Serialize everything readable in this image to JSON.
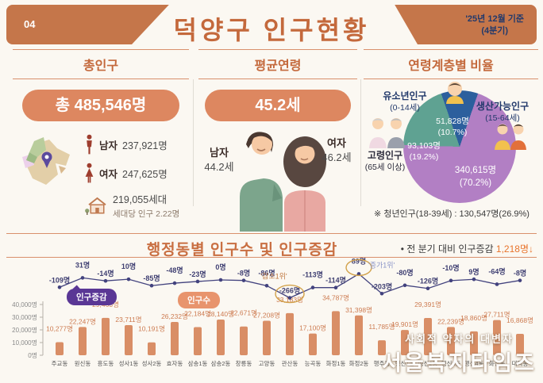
{
  "header": {
    "page_no": "04",
    "title": "덕양구 인구현황",
    "period_line1": "'25년 12월 기준",
    "period_line2": "(4분기)"
  },
  "total": {
    "title": "총인구",
    "total_pill": "총 485,546명",
    "male_label": "남자",
    "male_value": "237,921명",
    "female_label": "여자",
    "female_value": "247,625명",
    "household_value": "219,055세대",
    "household_note": "세대당 인구 2.22명"
  },
  "avg_age": {
    "title": "평균연령",
    "pill": "45.2세",
    "male_label": "남자",
    "male_value": "44.2세",
    "female_label": "여자",
    "female_value": "46.2세"
  },
  "age_ratio": {
    "title": "연령계층별 비율",
    "note": "※ 청년인구(18-39세) : 130,547명(26.9%)"
  },
  "district_chart": {
    "title": "행정동별 인구수 및 인구증감",
    "side_note_prefix": "• 전 분기 대비 인구증감 ",
    "side_note_value": "1,218명↓",
    "legend_change": "인구증감",
    "legend_pop": "인구수",
    "min_label": "'감소1위'",
    "max_label": "'증가1위'"
  },
  "watermark": {
    "line1": "사회적 약자의 대변자",
    "line2": "서울복지타임즈"
  },
  "colors": {
    "header_orange": "#c5764a",
    "title_orange": "#c4693c",
    "pill_salmon": "#dd8760",
    "badge_purple": "#5a3795",
    "badge_salmon": "#e8946d",
    "note_orange": "#e8742c",
    "navy_text": "#22396b"
  },
  "chart_data": [
    {
      "type": "pie",
      "title": "연령계층별 비율",
      "legend_position": "around",
      "slices": [
        {
          "name": "생산가능인구",
          "range": "(15-64세)",
          "value": 340615,
          "pct": 70.2,
          "value_display": "340,615명",
          "pct_display": "(70.2%)",
          "color": "#b27fc4"
        },
        {
          "name": "고령인구",
          "range": "(65세 이상)",
          "value": 93103,
          "pct": 19.2,
          "value_display": "93,103명",
          "pct_display": "(19.2%)",
          "color": "#5fa292"
        },
        {
          "name": "유소년인구",
          "range": "(0-14세)",
          "value": 51828,
          "pct": 10.7,
          "value_display": "51,828명",
          "pct_display": "(10.7%)",
          "color": "#2c5f9d"
        }
      ],
      "annotation": "※ 청년인구(18-39세) : 130,547명(26.9%)"
    },
    {
      "type": "bar",
      "title": "행정동별 인구수 및 인구증감",
      "categories": [
        "주교동",
        "원신동",
        "흥도동",
        "성사1동",
        "성사2동",
        "효자동",
        "삼송1동",
        "삼송2동",
        "창릉동",
        "고양동",
        "관산동",
        "능곡동",
        "화정1동",
        "화정2동",
        "행주동",
        "행신1동",
        "행신2동",
        "행신3동",
        "행신4동",
        "화전동",
        "대덕동"
      ],
      "series": [
        {
          "name": "인구수",
          "type": "bar",
          "color": "#d98e66",
          "values": [
            10277,
            22247,
            29463,
            23711,
            10191,
            26232,
            22184,
            28140,
            22671,
            27208,
            33183,
            17100,
            34787,
            31398,
            11785,
            19901,
            29391,
            22239,
            18860,
            27711,
            16868
          ]
        },
        {
          "name": "인구증감",
          "type": "line",
          "color": "#42427e",
          "values": [
            -109,
            31,
            -14,
            10,
            -85,
            -48,
            -23,
            0,
            -8,
            -86,
            -266,
            -113,
            -114,
            89,
            -203,
            -80,
            -126,
            -10,
            9,
            -64,
            -8
          ]
        }
      ],
      "ylim": [
        0,
        40000
      ],
      "yticks": [
        40000,
        30000,
        20000,
        10000,
        0
      ],
      "ytick_suffix": "명",
      "grid": false,
      "highlight_min_index": 10,
      "highlight_max_index": 13,
      "highlight_min_label": "'감소1위'",
      "highlight_max_label": "'증가1위'",
      "quarter_change_note": "전 분기 대비 인구증감 1,218명 감소"
    }
  ]
}
